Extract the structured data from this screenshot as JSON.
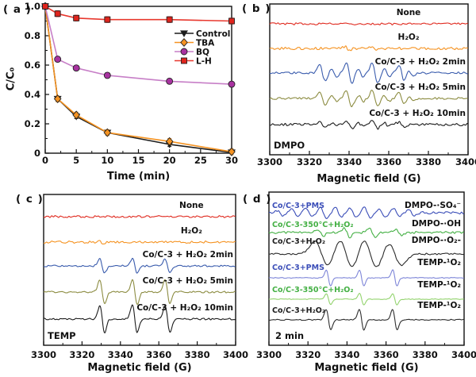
{
  "panels": {
    "a": {
      "tag": "( a )",
      "xlabel": "Time (min)",
      "ylabel": "C/C₀"
    },
    "b": {
      "tag": "( b )",
      "xlabel": "Magnetic field (G)",
      "corner": "DMPO"
    },
    "c": {
      "tag": "( c )",
      "xlabel": "Magnetic field (G)",
      "corner": "TEMP"
    },
    "d": {
      "tag": "( d )",
      "xlabel": "Magnetic field (G)",
      "corner": "2 min"
    }
  },
  "chart_data": [
    {
      "panel": "a",
      "type": "line",
      "title": "",
      "xlabel": "Time (min)",
      "ylabel": "C/C₀",
      "xlim": [
        0,
        30
      ],
      "ylim": [
        0,
        1.0
      ],
      "xticks": [
        0,
        5,
        10,
        15,
        20,
        25,
        30
      ],
      "yticks": [
        0,
        0.2,
        0.4,
        0.6,
        0.8,
        1.0
      ],
      "ytick_labels": [
        "0",
        "0.2",
        "0.4",
        "0.6",
        "0.8",
        "1.0"
      ],
      "legend_position": "upper-right",
      "x": [
        0,
        2,
        5,
        10,
        20,
        30
      ],
      "series": [
        {
          "name": "Control",
          "color": "#1c1c1c",
          "marker": "triangle-down",
          "marker_fill": "#1c1c1c",
          "err": 0.015,
          "values": [
            1.0,
            0.37,
            0.25,
            0.14,
            0.06,
            0.005
          ]
        },
        {
          "name": "TBA",
          "color": "#f59322",
          "marker": "diamond",
          "marker_fill": "#f59322",
          "err": 0.02,
          "values": [
            1.0,
            0.37,
            0.26,
            0.14,
            0.08,
            0.01
          ]
        },
        {
          "name": "BQ",
          "color": "#c77fc7",
          "marker": "circle",
          "marker_fill": "#a832a0",
          "err": 0.018,
          "values": [
            1.0,
            0.64,
            0.58,
            0.53,
            0.49,
            0.47
          ]
        },
        {
          "name": "L-H",
          "color": "#e8382e",
          "marker": "square",
          "marker_fill": "#e0241c",
          "err": 0.02,
          "values": [
            1.0,
            0.95,
            0.92,
            0.91,
            0.91,
            0.9
          ]
        }
      ]
    },
    {
      "panel": "b",
      "type": "line",
      "subtype": "epr",
      "xlabel": "Magnetic field (G)",
      "corner_label": "DMPO",
      "xlim": [
        3300,
        3400
      ],
      "xticks": [
        3300,
        3320,
        3340,
        3360,
        3380,
        3400
      ],
      "traces": [
        {
          "label": "None",
          "color": "#e02b20",
          "y_frac": 0.132,
          "noise": 1.3,
          "peaks": []
        },
        {
          "label": "H₂O₂",
          "color": "#f59322",
          "y_frac": 0.295,
          "noise": 1.5,
          "peaks": [
            {
              "c": 3339,
              "a": 2.5,
              "w": 1.2
            },
            {
              "c": 3352.5,
              "a": 2.5,
              "w": 1.2
            }
          ]
        },
        {
          "label": "Co/C-3 + H₂O₂ 2min",
          "color": "#3a5cad",
          "y_frac": 0.458,
          "noise": 1.3,
          "peaks": [
            {
              "c": 3326.5,
              "a": 10,
              "w": 1.4
            },
            {
              "c": 3340,
              "a": 13,
              "w": 1.4
            },
            {
              "c": 3353,
              "a": 13,
              "w": 1.4
            },
            {
              "c": 3366.5,
              "a": 10,
              "w": 1.4
            },
            {
              "c": 3332.5,
              "a": 5,
              "w": 1.2
            },
            {
              "c": 3346,
              "a": 5,
              "w": 1.2
            },
            {
              "c": 3359,
              "a": 5,
              "w": 1.2
            },
            {
              "c": 3371,
              "a": 4,
              "w": 1.2
            }
          ]
        },
        {
          "label": "Co/C-3 + H₂O₂ 5min",
          "color": "#8c8c41",
          "y_frac": 0.626,
          "noise": 1.3,
          "peaks": [
            {
              "c": 3326.5,
              "a": 7.5,
              "w": 1.4
            },
            {
              "c": 3340,
              "a": 10,
              "w": 1.4
            },
            {
              "c": 3353,
              "a": 10,
              "w": 1.4
            },
            {
              "c": 3366.5,
              "a": 7.5,
              "w": 1.4
            },
            {
              "c": 3332.5,
              "a": 3.7,
              "w": 1.2
            },
            {
              "c": 3346,
              "a": 3.7,
              "w": 1.2
            },
            {
              "c": 3359,
              "a": 3.7,
              "w": 1.2
            },
            {
              "c": 3371,
              "a": 3,
              "w": 1.2
            }
          ]
        },
        {
          "label": "Co/C-3 + H₂O₂ 10min",
          "color": "#1c1c1c",
          "y_frac": 0.8,
          "noise": 1.6,
          "peaks": [
            {
              "c": 3326.5,
              "a": 3.5,
              "w": 1.4
            },
            {
              "c": 3340,
              "a": 4.5,
              "w": 1.4
            },
            {
              "c": 3353,
              "a": 4.5,
              "w": 1.4
            },
            {
              "c": 3366.5,
              "a": 3.5,
              "w": 1.4
            },
            {
              "c": 3332.5,
              "a": 1.8,
              "w": 1.2
            },
            {
              "c": 3346,
              "a": 1.8,
              "w": 1.2
            },
            {
              "c": 3359,
              "a": 1.8,
              "w": 1.2
            }
          ]
        }
      ]
    },
    {
      "panel": "c",
      "type": "line",
      "subtype": "epr",
      "xlabel": "Magnetic field (G)",
      "corner_label": "TEMP",
      "xlim": [
        3300,
        3400
      ],
      "xticks": [
        3300,
        3320,
        3340,
        3360,
        3380,
        3400
      ],
      "traces": [
        {
          "label": "None",
          "color": "#e02b20",
          "y_frac": 0.147,
          "noise": 1.3,
          "peaks": []
        },
        {
          "label": "H₂O₂",
          "color": "#f59322",
          "y_frac": 0.316,
          "noise": 1.4,
          "peaks": [
            {
              "c": 3330,
              "a": 1.6,
              "w": 1.2
            }
          ]
        },
        {
          "label": "Co/C-3 + H₂O₂ 2min",
          "color": "#3a5cad",
          "y_frac": 0.474,
          "noise": 1.1,
          "peaks": [
            {
              "c": 3330.5,
              "a": 9,
              "w": 1.3
            },
            {
              "c": 3347.5,
              "a": 9,
              "w": 1.3
            },
            {
              "c": 3364.5,
              "a": 9,
              "w": 1.3
            }
          ]
        },
        {
          "label": "Co/C-3 + H₂O₂ 5min",
          "color": "#8c8c41",
          "y_frac": 0.647,
          "noise": 1.1,
          "peaks": [
            {
              "c": 3330.5,
              "a": 15,
              "w": 1.3
            },
            {
              "c": 3347.5,
              "a": 15,
              "w": 1.3
            },
            {
              "c": 3364.5,
              "a": 15,
              "w": 1.3
            }
          ]
        },
        {
          "label": "Co/C-3 + H₂O₂ 10min",
          "color": "#1c1c1c",
          "y_frac": 0.826,
          "noise": 1.1,
          "peaks": [
            {
              "c": 3330.5,
              "a": 17,
              "w": 1.3
            },
            {
              "c": 3347.5,
              "a": 17,
              "w": 1.3
            },
            {
              "c": 3364.5,
              "a": 17,
              "w": 1.3
            }
          ]
        }
      ]
    },
    {
      "panel": "d",
      "type": "line",
      "subtype": "epr",
      "xlabel": "Magnetic field (G)",
      "corner_label": "2 min",
      "xlim": [
        3300,
        3400
      ],
      "xticks": [
        3300,
        3320,
        3340,
        3360,
        3380,
        3400
      ],
      "traces": [
        {
          "label_left": "Co/C-3+PMS",
          "label_left_color": "#3b4eb8",
          "label_right": "DMPO-·SO₄⁻",
          "color": "#3b4eb8",
          "y_frac": 0.135,
          "noise": 1.6,
          "llift": 6,
          "rlift": 6,
          "peaks": [
            {
              "c": 3305.5,
              "a": 3,
              "w": 1.6
            },
            {
              "c": 3313,
              "a": 4.5,
              "w": 1.6
            },
            {
              "c": 3320.5,
              "a": 5.5,
              "w": 1.6
            },
            {
              "c": 3328,
              "a": 6,
              "w": 1.6
            },
            {
              "c": 3335.5,
              "a": 6,
              "w": 1.6
            },
            {
              "c": 3343,
              "a": 6,
              "w": 1.6
            },
            {
              "c": 3350.5,
              "a": 6,
              "w": 1.6
            },
            {
              "c": 3358,
              "a": 5.5,
              "w": 1.6
            },
            {
              "c": 3365.5,
              "a": 5,
              "w": 1.6
            },
            {
              "c": 3373,
              "a": 3.5,
              "w": 1.6
            }
          ]
        },
        {
          "label_left": "Co/C-3-350°C+H₂O₂",
          "label_left_color": "#44b044",
          "label_right": "DMPO-·OH",
          "color": "#44b044",
          "y_frac": 0.264,
          "noise": 1.4,
          "llift": 7,
          "rlift": 8,
          "peaks": [
            {
              "c": 3326.5,
              "a": 4,
              "w": 1.4
            },
            {
              "c": 3340,
              "a": 6,
              "w": 1.4
            },
            {
              "c": 3353,
              "a": 5.5,
              "w": 1.4
            },
            {
              "c": 3366.5,
              "a": 4,
              "w": 1.4
            }
          ]
        },
        {
          "label_left": "Co/C-3+H₂O₂",
          "label_left_color": "#1c1c1c",
          "label_right": "DMPO-·O₂-",
          "color": "#2b2b2b",
          "y_frac": 0.404,
          "noise": 1.0,
          "llift": 13,
          "rlift": 14,
          "peaks": [
            {
              "c": 3327,
              "a": 16,
              "w": 3.4
            },
            {
              "c": 3339.5,
              "a": 18,
              "w": 3.4
            },
            {
              "c": 3352,
              "a": 18,
              "w": 3.4
            },
            {
              "c": 3364.5,
              "a": 14,
              "w": 3.4
            }
          ]
        },
        {
          "label_left": "Co/C-3+PMS",
          "label_left_color": "#3b4eb8",
          "label_right": "TEMP-¹O₂",
          "color": "#7e86d8",
          "y_frac": 0.56,
          "noise": 0.5,
          "llift": 10,
          "rlift": 16,
          "peaks": [
            {
              "c": 3330.5,
              "a": 10,
              "w": 1.1
            },
            {
              "c": 3347.5,
              "a": 10,
              "w": 1.1
            },
            {
              "c": 3364.5,
              "a": 10,
              "w": 1.1
            }
          ]
        },
        {
          "label_left": "Co/C-3-350°C+H₂O₂",
          "label_left_color": "#44b044",
          "label_right": "TEMP-¹O₂",
          "color": "#93d36e",
          "y_frac": 0.699,
          "noise": 0.5,
          "llift": 9,
          "rlift": 15,
          "peaks": [
            {
              "c": 3330.5,
              "a": 7,
              "w": 1.1
            },
            {
              "c": 3347.5,
              "a": 7,
              "w": 1.1
            },
            {
              "c": 3364.5,
              "a": 7,
              "w": 1.1
            }
          ]
        },
        {
          "label_left": "Co/C-3+H₂O₂",
          "label_left_color": "#1c1c1c",
          "label_right": "TEMP-¹O₂",
          "color": "#2e2e2e",
          "y_frac": 0.834,
          "noise": 0.7,
          "llift": 9,
          "rlift": 15,
          "peaks": [
            {
              "c": 3330.5,
              "a": 13,
              "w": 1.2
            },
            {
              "c": 3347.5,
              "a": 13,
              "w": 1.2
            },
            {
              "c": 3364.5,
              "a": 13,
              "w": 1.2
            }
          ]
        }
      ]
    }
  ]
}
